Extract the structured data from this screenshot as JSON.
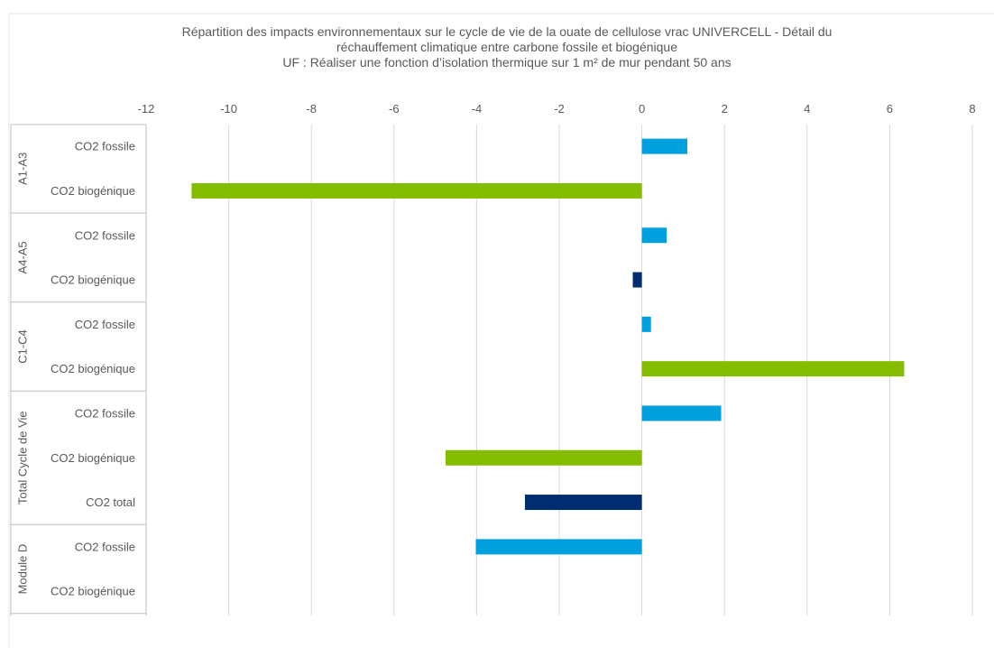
{
  "chart_data": {
    "type": "bar",
    "orientation": "horizontal",
    "title_lines": [
      "Répartition des impacts environnementaux  sur le cycle de vie de la ouate de cellulose  vrac UNIVERCELL - Détail du",
      "réchauffement climatique entre carbone fossile et biogénique",
      "UF : Réaliser une fonction d’isolation thermique sur 1 m² de mur pendant 50 ans"
    ],
    "xlim": [
      -12,
      8
    ],
    "xticks": [
      -12,
      -10,
      -8,
      -6,
      -4,
      -2,
      0,
      2,
      4,
      6,
      8
    ],
    "grid": true,
    "legend": "none",
    "colors": {
      "fossile": "#00A0DF",
      "biogenique": "#84BD00",
      "negatif": "#002D72",
      "grid": "#d9d9d9",
      "axis": "#bfbfbf",
      "text": "#595959"
    },
    "groups": [
      {
        "name": "A1-A3",
        "rows": [
          {
            "label": "CO2 fossile",
            "value": 1.1,
            "color": "fossile"
          },
          {
            "label": "CO2 biogénique",
            "value": -10.9,
            "color": "biogenique"
          }
        ]
      },
      {
        "name": "A4-A5",
        "rows": [
          {
            "label": "CO2 fossile",
            "value": 0.6,
            "color": "fossile"
          },
          {
            "label": "CO2 biogénique",
            "value": -0.22,
            "color": "negatif"
          }
        ]
      },
      {
        "name": "C1-C4",
        "rows": [
          {
            "label": "CO2 fossile",
            "value": 0.22,
            "color": "fossile"
          },
          {
            "label": "CO2 biogénique",
            "value": 6.35,
            "color": "biogenique"
          }
        ]
      },
      {
        "name": "Total Cycle de Vie",
        "rows": [
          {
            "label": "CO2 fossile",
            "value": 1.92,
            "color": "fossile"
          },
          {
            "label": "CO2 biogénique",
            "value": -4.75,
            "color": "biogenique"
          },
          {
            "label": "CO2 total",
            "value": -2.83,
            "color": "negatif"
          }
        ]
      },
      {
        "name": "Module D",
        "rows": [
          {
            "label": "CO2 fossile",
            "value": -4.02,
            "color": "fossile"
          },
          {
            "label": "CO2 biogénique",
            "value": 0,
            "color": "biogenique"
          }
        ]
      }
    ]
  }
}
